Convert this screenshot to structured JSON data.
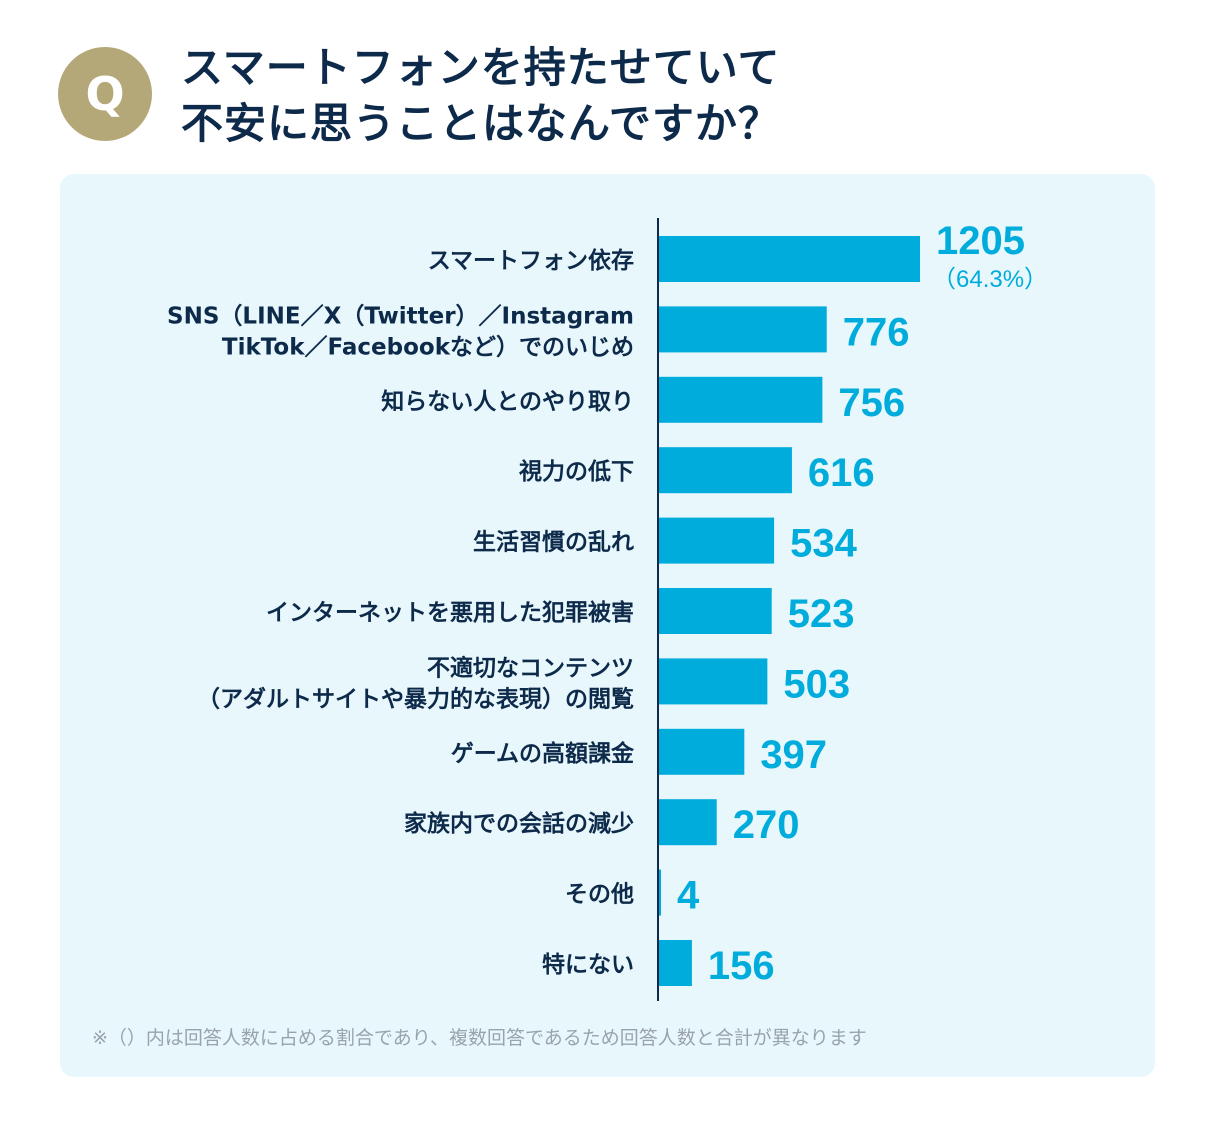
{
  "header": {
    "badge": "Q",
    "title_lines": [
      "スマートフォンを持たせていて",
      "不安に思うことはなんですか？"
    ]
  },
  "colors": {
    "badge": "#b5a878",
    "title": "#0d2a4a",
    "panel": "#e8f7fc",
    "bar": "#00acdc",
    "label": "#0d2a4a",
    "axis": "#0d2a4a",
    "note": "#9aa3ad"
  },
  "chart_data": {
    "type": "bar",
    "orientation": "horizontal",
    "categories": [
      [
        "スマートフォン依存"
      ],
      [
        "SNS（LINE／X（Twitter）／Instagram",
        "TikTok／Facebookなど）でのいじめ"
      ],
      [
        "知らない人とのやり取り"
      ],
      [
        "視力の低下"
      ],
      [
        "生活習慣の乱れ"
      ],
      [
        "インターネットを悪用した犯罪被害"
      ],
      [
        "不適切なコンテンツ",
        "（アダルトサイトや暴力的な表現）の閲覧"
      ],
      [
        "ゲームの高額課金"
      ],
      [
        "家族内での会話の減少"
      ],
      [
        "その他"
      ],
      [
        "特にない"
      ]
    ],
    "values": [
      1205,
      776,
      756,
      616,
      534,
      523,
      503,
      397,
      270,
      4,
      156
    ],
    "value_labels": [
      "1205",
      "776",
      "756",
      "616",
      "534",
      "523",
      "503",
      "397",
      "270",
      "4",
      "156"
    ],
    "annotations": [
      {
        "index": 0,
        "text": "（64.3%）"
      }
    ],
    "xlim": [
      0,
      1205
    ],
    "grid": false,
    "legend": "none"
  },
  "footnote": "※（）内は回答人数に占める割合であり、複数回答であるため回答人数と合計が異なります"
}
